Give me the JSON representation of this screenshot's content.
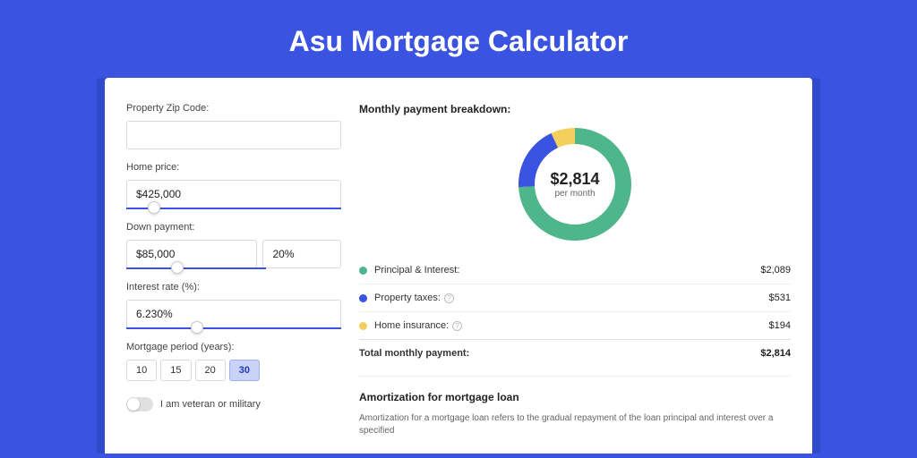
{
  "page": {
    "title": "Asu Mortgage Calculator",
    "background_color": "#3a53e0",
    "card_background": "#ffffff"
  },
  "form": {
    "zip": {
      "label": "Property Zip Code:",
      "value": ""
    },
    "home_price": {
      "label": "Home price:",
      "value": "$425,000",
      "slider_pct": 10
    },
    "down_payment": {
      "label": "Down payment:",
      "amount": "$85,000",
      "percent": "20%",
      "slider_pct": 22
    },
    "interest_rate": {
      "label": "Interest rate (%):",
      "value": "6.230%",
      "slider_pct": 30
    },
    "period": {
      "label": "Mortgage period (years):",
      "options": [
        "10",
        "15",
        "20",
        "30"
      ],
      "selected": "30"
    },
    "veteran": {
      "label": "I am veteran or military",
      "checked": false
    }
  },
  "breakdown": {
    "title": "Monthly payment breakdown:",
    "donut": {
      "amount": "$2,814",
      "sub": "per month",
      "segments": [
        {
          "key": "principal_interest",
          "pct": 74.2,
          "color": "#4fb58a"
        },
        {
          "key": "property_taxes",
          "pct": 18.9,
          "color": "#3a53e0"
        },
        {
          "key": "home_insurance",
          "pct": 6.9,
          "color": "#f3cf5d"
        }
      ],
      "ring_width": 18
    },
    "rows": [
      {
        "label": "Principal & Interest:",
        "value": "$2,089",
        "color": "#4fb58a",
        "info": false
      },
      {
        "label": "Property taxes:",
        "value": "$531",
        "color": "#3a53e0",
        "info": true
      },
      {
        "label": "Home insurance:",
        "value": "$194",
        "color": "#f3cf5d",
        "info": true
      }
    ],
    "total": {
      "label": "Total monthly payment:",
      "value": "$2,814"
    }
  },
  "amortization": {
    "title": "Amortization for mortgage loan",
    "text": "Amortization for a mortgage loan refers to the gradual repayment of the loan principal and interest over a specified"
  }
}
